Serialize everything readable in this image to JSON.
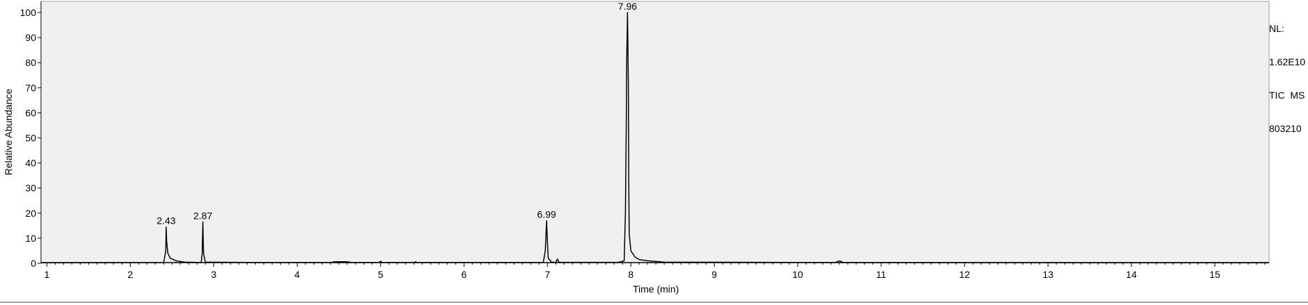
{
  "info": {
    "nl_label": "NL:",
    "nl_value": "1.62E10",
    "trace_line1": "TIC  MS",
    "trace_line2": "803210"
  },
  "chart_data": {
    "type": "line",
    "title": "",
    "xlabel": "Time (min)",
    "ylabel": "Relative Abundance",
    "xlim": [
      0.93,
      15.65
    ],
    "ylim": [
      0,
      100
    ],
    "x_ticks": [
      1,
      2,
      3,
      4,
      5,
      6,
      7,
      8,
      9,
      10,
      11,
      12,
      13,
      14,
      15
    ],
    "y_ticks": [
      0,
      10,
      20,
      30,
      40,
      50,
      60,
      70,
      80,
      90,
      100
    ],
    "grid": false,
    "colors": {
      "plot_background": "#f0f0f0",
      "trace": "#000000"
    },
    "series": [
      {
        "values_xy": [
          [
            0.93,
            0.2
          ],
          [
            2.4,
            0.3
          ],
          [
            2.425,
            5
          ],
          [
            2.43,
            14.5
          ],
          [
            2.435,
            9
          ],
          [
            2.45,
            4
          ],
          [
            2.48,
            2
          ],
          [
            2.55,
            1
          ],
          [
            2.65,
            0.5
          ],
          [
            2.85,
            0.3
          ],
          [
            2.862,
            4
          ],
          [
            2.87,
            16.5
          ],
          [
            2.878,
            4
          ],
          [
            2.9,
            0.5
          ],
          [
            3.5,
            0.3
          ],
          [
            4.4,
            0.3
          ],
          [
            4.45,
            0.6
          ],
          [
            4.6,
            0.6
          ],
          [
            4.65,
            0.3
          ],
          [
            4.98,
            0.3
          ],
          [
            5.0,
            0.8
          ],
          [
            5.02,
            0.3
          ],
          [
            5.4,
            0.3
          ],
          [
            5.42,
            0.6
          ],
          [
            5.44,
            0.3
          ],
          [
            6.95,
            0.3
          ],
          [
            6.975,
            5
          ],
          [
            6.99,
            17
          ],
          [
            7.0,
            9
          ],
          [
            7.01,
            2
          ],
          [
            7.05,
            0.5
          ],
          [
            7.1,
            0.4
          ],
          [
            7.12,
            1.7
          ],
          [
            7.14,
            0.4
          ],
          [
            7.85,
            0.4
          ],
          [
            7.92,
            1
          ],
          [
            7.935,
            20
          ],
          [
            7.945,
            55
          ],
          [
            7.95,
            80
          ],
          [
            7.96,
            100
          ],
          [
            7.97,
            72
          ],
          [
            7.975,
            35
          ],
          [
            7.98,
            12
          ],
          [
            8.0,
            5
          ],
          [
            8.05,
            2.5
          ],
          [
            8.1,
            1.5
          ],
          [
            8.2,
            1
          ],
          [
            8.4,
            0.5
          ],
          [
            10.45,
            0.3
          ],
          [
            10.5,
            1
          ],
          [
            10.55,
            0.3
          ],
          [
            15.65,
            0.2
          ]
        ]
      }
    ],
    "peak_labels": [
      {
        "x": 2.43,
        "y": 14.5,
        "text": "2.43"
      },
      {
        "x": 2.87,
        "y": 16.5,
        "text": "2.87"
      },
      {
        "x": 6.99,
        "y": 17,
        "text": "6.99"
      },
      {
        "x": 7.96,
        "y": 100,
        "text": "7.96"
      }
    ]
  }
}
